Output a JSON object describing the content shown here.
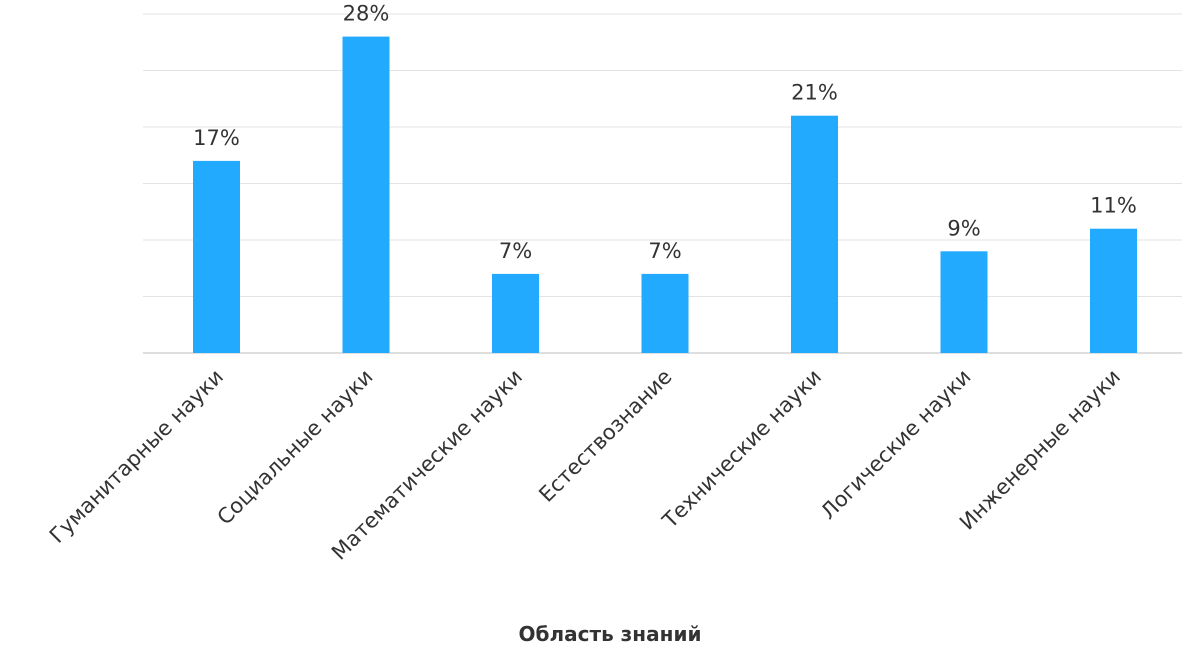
{
  "chart_data": {
    "type": "bar",
    "title": "",
    "xlabel": "Область знаний",
    "ylabel": "",
    "categories": [
      "Гуманитарные науки",
      "Социальные науки",
      "Математические науки",
      "Естествознание",
      "Технические науки",
      "Логические науки",
      "Инженерные науки"
    ],
    "values": [
      17,
      28,
      7,
      7,
      21,
      9,
      11
    ],
    "value_labels": [
      "17%",
      "28%",
      "7%",
      "7%",
      "21%",
      "9%",
      "11%"
    ],
    "unit": "%",
    "ylim": [
      0,
      30
    ],
    "grid": true,
    "legend": "none",
    "bar_color": "#22aaff"
  }
}
